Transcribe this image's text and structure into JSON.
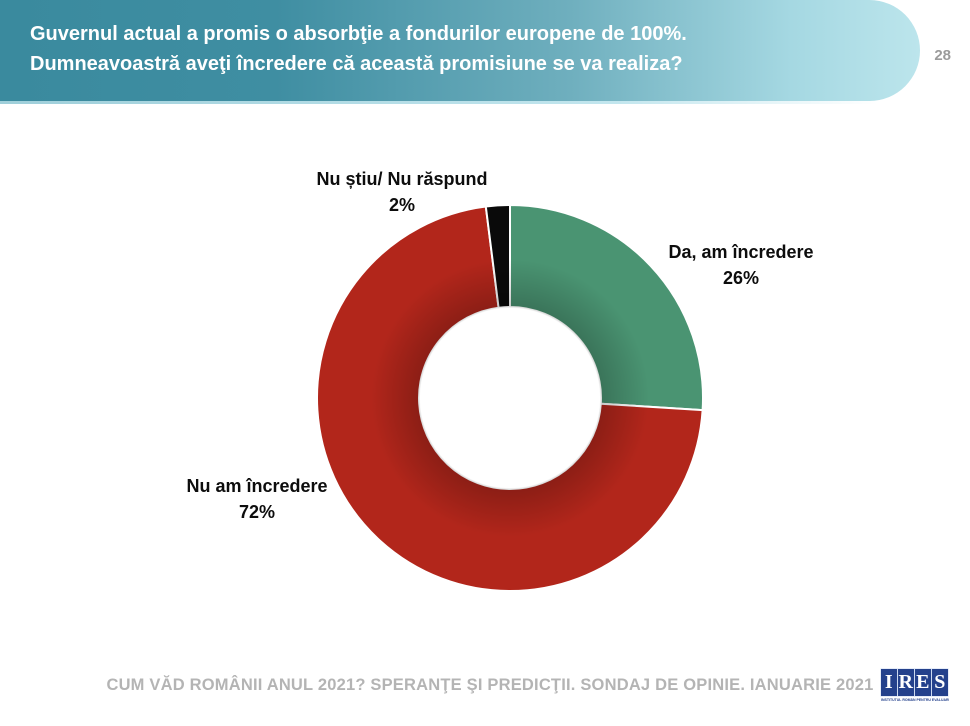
{
  "header": {
    "title_line1": "Guvernul actual a promis o absorbţie a fondurilor europene de 100%.",
    "title_line2": "Dumneavoastră aveţi încredere că această promisiune se va realiza?",
    "page_number": "28",
    "banner_gradient_start": "#3A8A9E",
    "banner_gradient_end": "#BCE5EC",
    "title_color": "#FFFFFF"
  },
  "chart_data": {
    "type": "pie",
    "subtype": "donut",
    "title": "",
    "start_angle_deg": 0,
    "direction": "clockwise",
    "inner_radius_ratio": 0.47,
    "outer_radius_px": 193,
    "inner_radius_px": 91,
    "separator_color": "#FFFFFF",
    "segments": [
      {
        "label": "Da, am încredere",
        "value": 26,
        "pct_label": "26%",
        "color": "#4A9472"
      },
      {
        "label": "Nu am încredere",
        "value": 72,
        "pct_label": "72%",
        "color": "#B2261B"
      },
      {
        "label": "Nu știu/ Nu răspund",
        "value": 2,
        "pct_label": "2%",
        "color": "#0A0A0A"
      }
    ]
  },
  "footer": {
    "caption": "CUM VĂD ROMÂNII ANUL 2021? SPERANŢE ŞI PREDICŢII. SONDAJ DE OPINIE. IANUARIE 2021",
    "logo": {
      "letters": [
        "I",
        "R",
        "E",
        "S"
      ],
      "tagline": "INSTITUTUL ROMÂN PENTRU EVALUARE ŞI STRATEGIE",
      "color": "#24418C"
    }
  }
}
